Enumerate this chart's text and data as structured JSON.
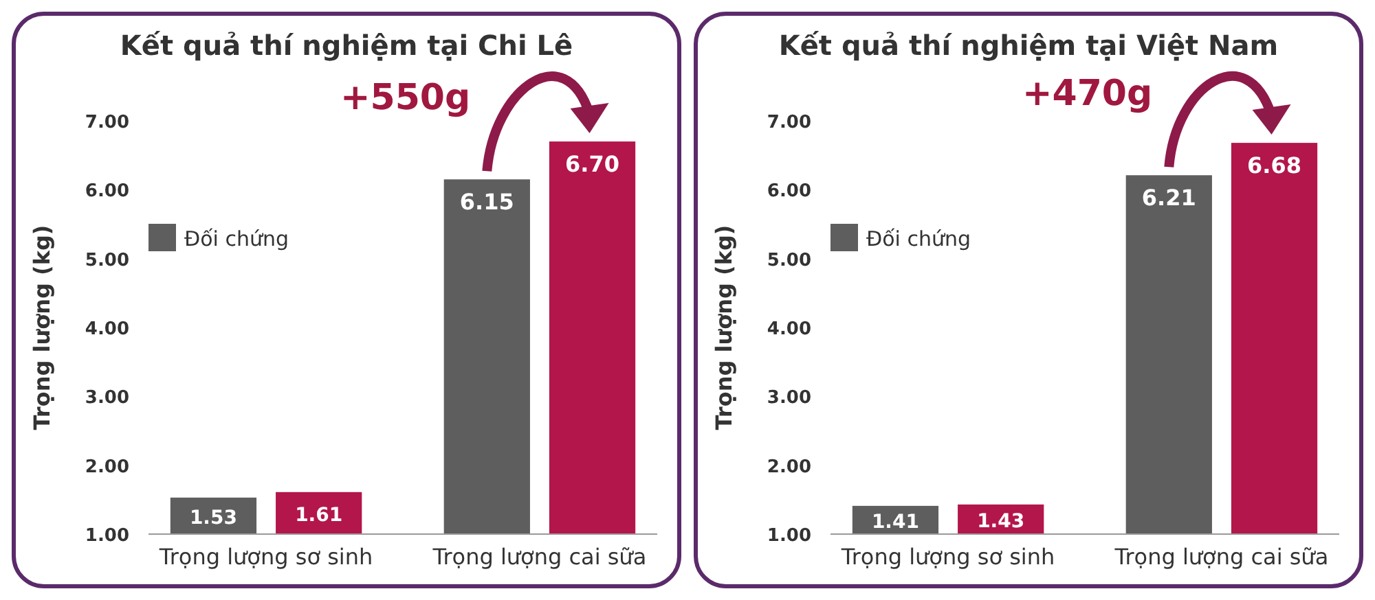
{
  "chart_data": [
    {
      "type": "bar",
      "title": "Kết quả thí nghiệm tại Chi Lê",
      "ylabel": "Trọng lượng (kg)",
      "categories": [
        "Trọng lượng sơ sinh",
        "Trọng lượng cai sữa"
      ],
      "series": [
        {
          "name": "Đối chứng",
          "color": "#5e5e5e",
          "values": [
            1.53,
            6.15
          ],
          "value_labels": [
            "1.53",
            "6.15"
          ]
        },
        {
          "color": "#b3164a",
          "values": [
            1.61,
            6.7
          ],
          "value_labels": [
            "1.61",
            "6.70"
          ]
        }
      ],
      "ylim": [
        1,
        7
      ],
      "yticks": [
        {
          "value": 1,
          "label": "1.00"
        },
        {
          "value": 2,
          "label": "2.00"
        },
        {
          "value": 3,
          "label": "3.00"
        },
        {
          "value": 4,
          "label": "4.00"
        },
        {
          "value": 5,
          "label": "5.00"
        },
        {
          "value": 6,
          "label": "6.00"
        },
        {
          "value": 7,
          "label": "7.00"
        }
      ],
      "legend": "top left",
      "annotations": [
        "+550g"
      ]
    },
    {
      "type": "bar",
      "title": "Kết quả thí nghiệm tại Việt Nam",
      "ylabel": "Trọng lượng (kg)",
      "categories": [
        "Trọng lượng sơ sinh",
        "Trọng lượng cai sữa"
      ],
      "series": [
        {
          "name": "Đối chứng",
          "color": "#5e5e5e",
          "values": [
            1.41,
            6.21
          ],
          "value_labels": [
            "1.41",
            "6.21"
          ]
        },
        {
          "color": "#b3164a",
          "values": [
            1.43,
            6.68
          ],
          "value_labels": [
            "1.43",
            "6.68"
          ]
        }
      ],
      "ylim": [
        1,
        7
      ],
      "yticks": [
        {
          "value": 1,
          "label": "1.00"
        },
        {
          "value": 2,
          "label": "2.00"
        },
        {
          "value": 3,
          "label": "3.00"
        },
        {
          "value": 4,
          "label": "4.00"
        },
        {
          "value": 5,
          "label": "5.00"
        },
        {
          "value": 6,
          "label": "6.00"
        },
        {
          "value": 7,
          "label": "7.00"
        }
      ],
      "legend": "top left",
      "annotations": [
        "+470g"
      ]
    }
  ]
}
